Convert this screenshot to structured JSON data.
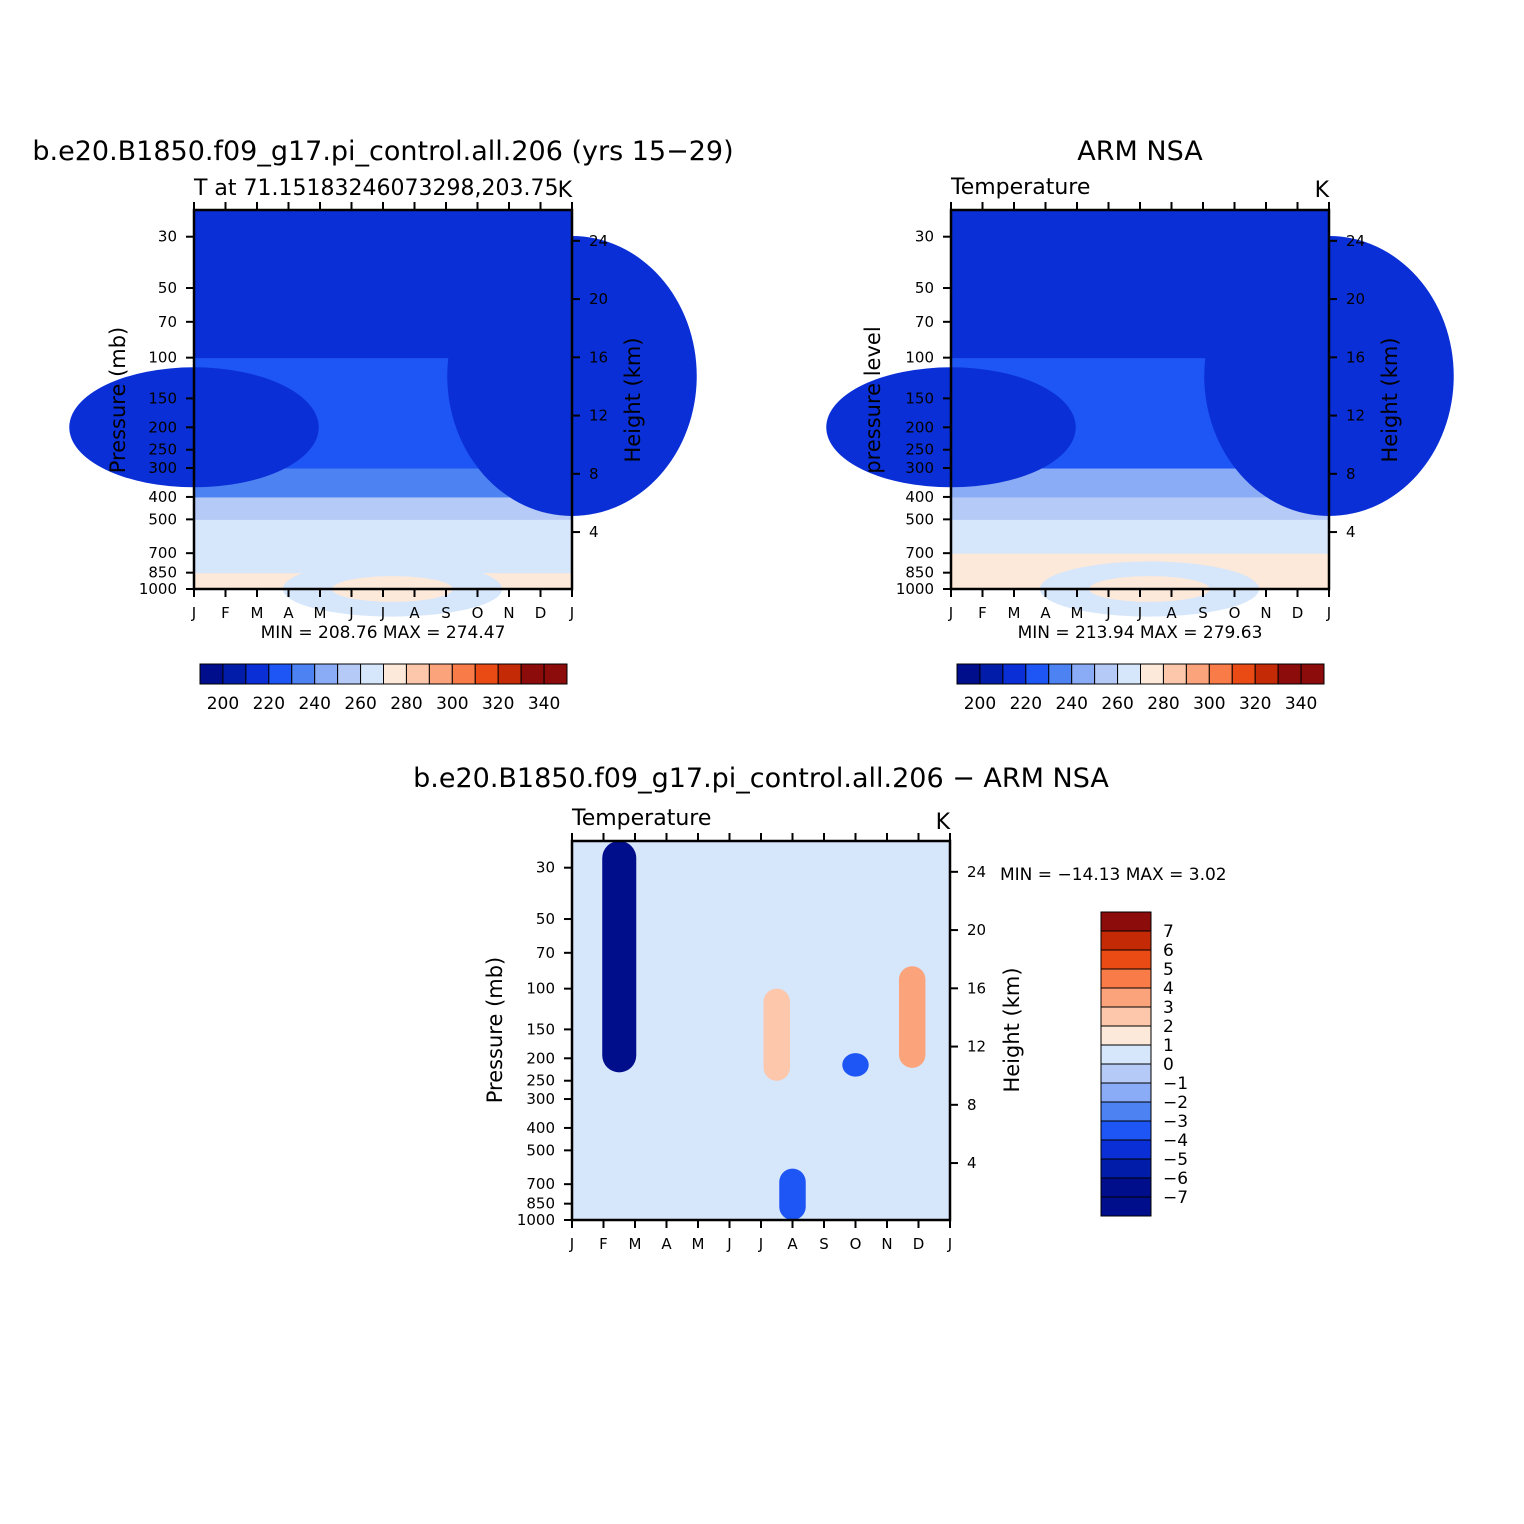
{
  "colors": {
    "temperature_levels": [
      "#000e8c",
      "#001ca8",
      "#0a2fd6",
      "#1e55f5",
      "#4c82f2",
      "#8aabf5",
      "#b5caf7",
      "#d6e6fb",
      "#fde9d9",
      "#fcc7aa",
      "#fba37b",
      "#f97b47",
      "#ea4a14",
      "#c42a06",
      "#8c0b0b"
    ],
    "difference_levels": [
      "#000e8c",
      "#001ca8",
      "#0a2fd6",
      "#1e55f5",
      "#4c82f2",
      "#8aabf5",
      "#b5caf7",
      "#d6e6fb",
      "#fde9d9",
      "#fcc7aa",
      "#fba37b",
      "#f97b47",
      "#ea4a14",
      "#c42a06",
      "#8c0b0b"
    ]
  },
  "chart_data": [
    {
      "type": "heatmap",
      "title": "b.e20.B1850.f09_g17.pi_control.all.206 (yrs 15−29)",
      "left_subtitle": "T at 71.15183246073298,203.75",
      "right_subtitle": "K",
      "ylabel": "Pressure (mb)",
      "y2label": "Height (km)",
      "x_ticklabels": [
        "J",
        "F",
        "M",
        "A",
        "M",
        "J",
        "J",
        "A",
        "S",
        "O",
        "N",
        "D",
        "J"
      ],
      "pressure_ticklabels": [
        "30",
        "50",
        "70",
        "100",
        "150",
        "200",
        "250",
        "300",
        "400",
        "500",
        "700",
        "850",
        "1000"
      ],
      "height_ticklabels": [
        "24",
        "20",
        "16",
        "12",
        "8",
        "4"
      ],
      "stats": "MIN =  208.76  MAX =  274.47",
      "min": 208.76,
      "max": 274.47,
      "y_scale": "log",
      "ylim": [
        1000,
        23
      ],
      "colorbar": {
        "orientation": "horizontal",
        "levels": [
          195,
          200,
          210,
          220,
          230,
          240,
          250,
          260,
          270,
          280,
          290,
          300,
          310,
          320,
          330,
          340,
          345
        ],
        "ticklabels": [
          "200",
          "220",
          "240",
          "260",
          "280",
          "300",
          "320",
          "340"
        ]
      },
      "profile": [
        {
          "pressure": 1000,
          "value": 271
        },
        {
          "pressure": 850,
          "value": 268
        },
        {
          "pressure": 700,
          "value": 262
        },
        {
          "pressure": 500,
          "value": 250
        },
        {
          "pressure": 400,
          "value": 238
        },
        {
          "pressure": 300,
          "value": 226
        },
        {
          "pressure": 200,
          "value": 220
        },
        {
          "pressure": 100,
          "value": 216
        },
        {
          "pressure": 50,
          "value": 214
        },
        {
          "pressure": 30,
          "value": 213
        }
      ]
    },
    {
      "type": "heatmap",
      "title": "ARM NSA",
      "left_subtitle": "Temperature",
      "right_subtitle": "K",
      "ylabel": "pressure level",
      "y2label": "Height (km)",
      "x_ticklabels": [
        "J",
        "F",
        "M",
        "A",
        "M",
        "J",
        "J",
        "A",
        "S",
        "O",
        "N",
        "D",
        "J"
      ],
      "pressure_ticklabels": [
        "30",
        "50",
        "70",
        "100",
        "150",
        "200",
        "250",
        "300",
        "400",
        "500",
        "700",
        "850",
        "1000"
      ],
      "height_ticklabels": [
        "24",
        "20",
        "16",
        "12",
        "8",
        "4"
      ],
      "stats": "MIN =  213.94  MAX =  279.63",
      "min": 213.94,
      "max": 279.63,
      "y_scale": "log",
      "ylim": [
        1000,
        23
      ],
      "colorbar": {
        "orientation": "horizontal",
        "levels": [
          195,
          200,
          210,
          220,
          230,
          240,
          250,
          260,
          270,
          280,
          290,
          300,
          310,
          320,
          330,
          340,
          345
        ],
        "ticklabels": [
          "200",
          "220",
          "240",
          "260",
          "280",
          "300",
          "320",
          "340"
        ]
      },
      "profile": [
        {
          "pressure": 1000,
          "value": 274
        },
        {
          "pressure": 850,
          "value": 270
        },
        {
          "pressure": 700,
          "value": 263
        },
        {
          "pressure": 500,
          "value": 250
        },
        {
          "pressure": 400,
          "value": 240
        },
        {
          "pressure": 300,
          "value": 226
        },
        {
          "pressure": 200,
          "value": 222
        },
        {
          "pressure": 100,
          "value": 218
        },
        {
          "pressure": 50,
          "value": 216
        },
        {
          "pressure": 30,
          "value": 214
        }
      ]
    },
    {
      "type": "heatmap",
      "title": "b.e20.B1850.f09_g17.pi_control.all.206 − ARM NSA",
      "left_subtitle": "Temperature",
      "right_subtitle": "K",
      "ylabel": "Pressure (mb)",
      "y2label": "Height (km)",
      "x_ticklabels": [
        "J",
        "F",
        "M",
        "A",
        "M",
        "J",
        "J",
        "A",
        "S",
        "O",
        "N",
        "D",
        "J"
      ],
      "pressure_ticklabels": [
        "30",
        "50",
        "70",
        "100",
        "150",
        "200",
        "250",
        "300",
        "400",
        "500",
        "700",
        "850",
        "1000"
      ],
      "height_ticklabels": [
        "24",
        "20",
        "16",
        "12",
        "8",
        "4"
      ],
      "stats": "MIN = −14.13  MAX =    3.02",
      "min": -14.13,
      "max": 3.02,
      "y_scale": "log",
      "ylim": [
        1000,
        23
      ],
      "colorbar": {
        "orientation": "vertical",
        "levels": [
          -7,
          -6,
          -5,
          -4,
          -3,
          -2,
          -1,
          0,
          1,
          2,
          3,
          4,
          5,
          6,
          7
        ],
        "ticklabels": [
          "7",
          "6",
          "5",
          "4",
          "3",
          "2",
          "1",
          "0",
          "−1",
          "−2",
          "−3",
          "−4",
          "−5",
          "−6",
          "−7"
        ]
      },
      "features": [
        {
          "month": 1.5,
          "p_top": 23,
          "p_bottom": 230,
          "value": -8
        },
        {
          "month": 6.5,
          "p_top": 100,
          "p_bottom": 250,
          "value": 1
        },
        {
          "month": 10.8,
          "p_top": 80,
          "p_bottom": 220,
          "value": 2
        },
        {
          "month": 7.0,
          "p_top": 600,
          "p_bottom": 1000,
          "value": -5
        },
        {
          "month": 9.0,
          "p_top": 190,
          "p_bottom": 240,
          "value": -5
        }
      ]
    }
  ]
}
